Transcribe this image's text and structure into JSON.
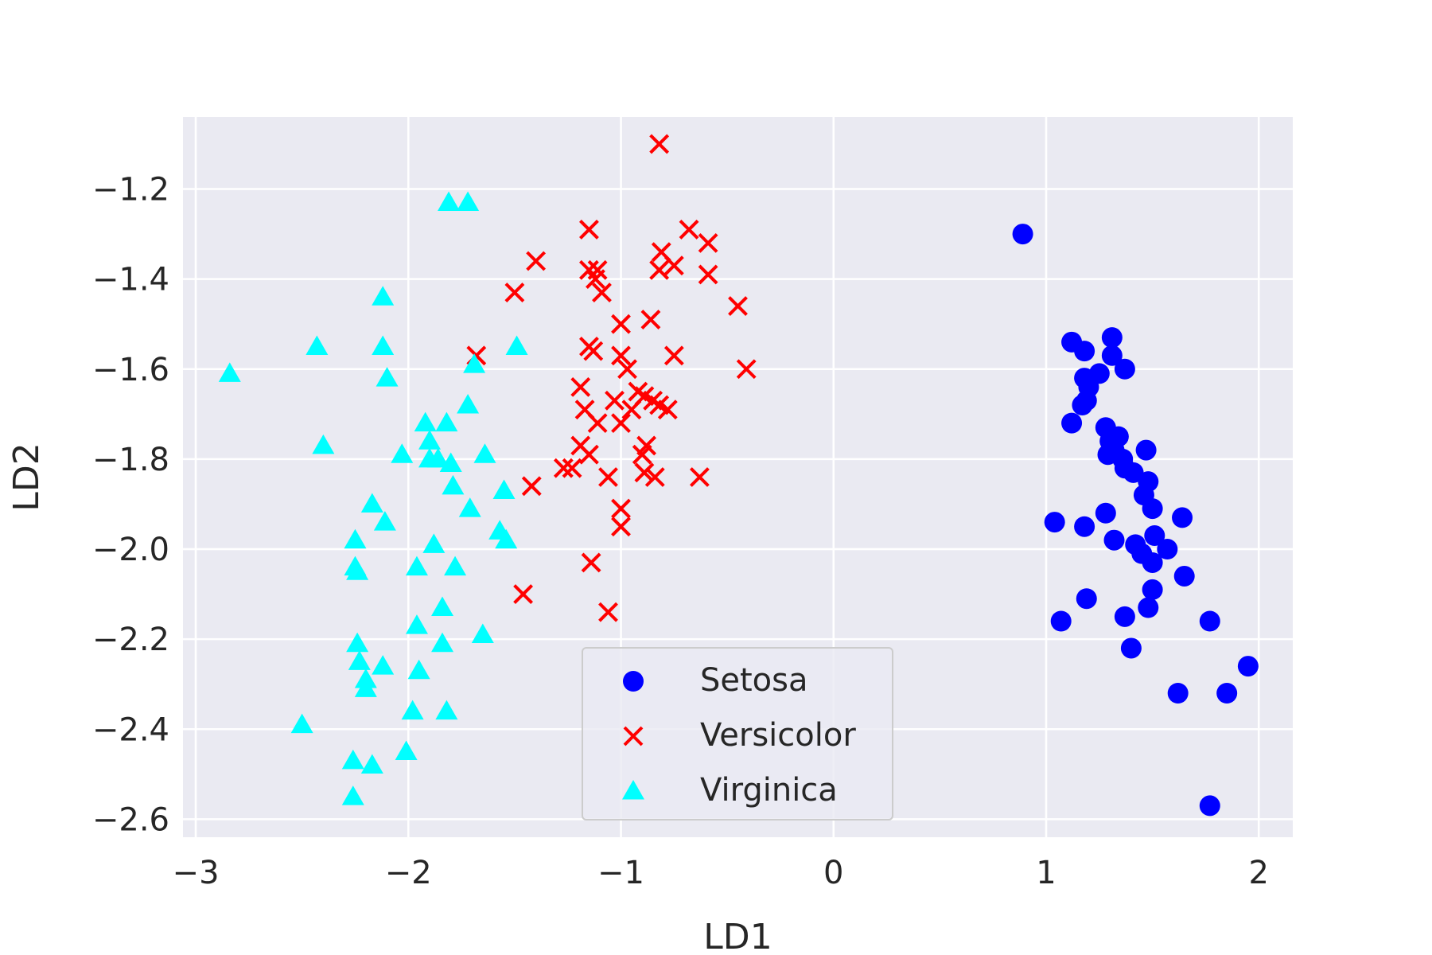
{
  "chart_data": {
    "type": "scatter",
    "title": "",
    "xlabel": "LD1",
    "ylabel": "LD2",
    "xlim": [
      -3.06,
      2.16
    ],
    "ylim": [
      -2.64,
      -1.04
    ],
    "xticks": [
      -3,
      -2,
      -1,
      0,
      1,
      2
    ],
    "yticks": [
      -2.6,
      -2.4,
      -2.2,
      -2.0,
      -1.8,
      -1.6,
      -1.4,
      -1.2
    ],
    "xtick_labels": [
      "−3",
      "−2",
      "−1",
      "0",
      "1",
      "2"
    ],
    "ytick_labels": [
      "−2.6",
      "−2.4",
      "−2.2",
      "−2.0",
      "−1.8",
      "−1.6",
      "−1.4",
      "−1.2"
    ],
    "grid": true,
    "legend_position": "lower-center",
    "series": [
      {
        "name": "Setosa",
        "marker": "circle",
        "color": "#0000ff",
        "points": [
          [
            0.89,
            -1.3
          ],
          [
            1.12,
            -1.54
          ],
          [
            1.18,
            -1.56
          ],
          [
            1.31,
            -1.53
          ],
          [
            1.31,
            -1.57
          ],
          [
            1.37,
            -1.6
          ],
          [
            1.18,
            -1.62
          ],
          [
            1.2,
            -1.64
          ],
          [
            1.25,
            -1.61
          ],
          [
            1.17,
            -1.68
          ],
          [
            1.19,
            -1.67
          ],
          [
            1.12,
            -1.72
          ],
          [
            1.28,
            -1.73
          ],
          [
            1.3,
            -1.76
          ],
          [
            1.34,
            -1.75
          ],
          [
            1.32,
            -1.78
          ],
          [
            1.29,
            -1.79
          ],
          [
            1.36,
            -1.8
          ],
          [
            1.37,
            -1.82
          ],
          [
            1.47,
            -1.78
          ],
          [
            1.41,
            -1.83
          ],
          [
            1.48,
            -1.85
          ],
          [
            1.46,
            -1.88
          ],
          [
            1.5,
            -1.91
          ],
          [
            1.04,
            -1.94
          ],
          [
            1.18,
            -1.95
          ],
          [
            1.28,
            -1.92
          ],
          [
            1.32,
            -1.98
          ],
          [
            1.42,
            -1.99
          ],
          [
            1.45,
            -2.01
          ],
          [
            1.51,
            -1.97
          ],
          [
            1.5,
            -2.03
          ],
          [
            1.57,
            -2.0
          ],
          [
            1.64,
            -1.93
          ],
          [
            1.65,
            -2.06
          ],
          [
            1.5,
            -2.09
          ],
          [
            1.19,
            -2.11
          ],
          [
            1.07,
            -2.16
          ],
          [
            1.37,
            -2.15
          ],
          [
            1.48,
            -2.13
          ],
          [
            1.4,
            -2.22
          ],
          [
            1.77,
            -2.16
          ],
          [
            1.62,
            -2.32
          ],
          [
            1.85,
            -2.32
          ],
          [
            1.95,
            -2.26
          ],
          [
            1.77,
            -2.57
          ]
        ]
      },
      {
        "name": "Versicolor",
        "marker": "x",
        "color": "#ff0000",
        "points": [
          [
            -0.82,
            -1.1
          ],
          [
            -0.68,
            -1.29
          ],
          [
            -1.15,
            -1.29
          ],
          [
            -0.59,
            -1.32
          ],
          [
            -0.81,
            -1.34
          ],
          [
            -0.75,
            -1.37
          ],
          [
            -0.82,
            -1.38
          ],
          [
            -1.4,
            -1.36
          ],
          [
            -1.15,
            -1.38
          ],
          [
            -1.11,
            -1.38
          ],
          [
            -1.12,
            -1.4
          ],
          [
            -0.59,
            -1.39
          ],
          [
            -1.5,
            -1.43
          ],
          [
            -1.09,
            -1.43
          ],
          [
            -0.45,
            -1.46
          ],
          [
            -0.86,
            -1.49
          ],
          [
            -1.0,
            -1.5
          ],
          [
            -1.15,
            -1.55
          ],
          [
            -1.13,
            -1.56
          ],
          [
            -1.68,
            -1.57
          ],
          [
            -1.0,
            -1.57
          ],
          [
            -0.75,
            -1.57
          ],
          [
            -0.97,
            -1.6
          ],
          [
            -0.41,
            -1.6
          ],
          [
            -1.19,
            -1.64
          ],
          [
            -0.92,
            -1.65
          ],
          [
            -0.89,
            -1.66
          ],
          [
            -0.85,
            -1.67
          ],
          [
            -1.03,
            -1.67
          ],
          [
            -0.95,
            -1.69
          ],
          [
            -0.82,
            -1.68
          ],
          [
            -0.78,
            -1.69
          ],
          [
            -1.17,
            -1.69
          ],
          [
            -1.11,
            -1.72
          ],
          [
            -1.0,
            -1.72
          ],
          [
            -1.19,
            -1.77
          ],
          [
            -0.88,
            -1.77
          ],
          [
            -0.9,
            -1.79
          ],
          [
            -1.15,
            -1.79
          ],
          [
            -1.27,
            -1.82
          ],
          [
            -1.23,
            -1.82
          ],
          [
            -0.89,
            -1.83
          ],
          [
            -1.06,
            -1.84
          ],
          [
            -0.84,
            -1.84
          ],
          [
            -0.63,
            -1.84
          ],
          [
            -1.42,
            -1.86
          ],
          [
            -1.0,
            -1.91
          ],
          [
            -1.0,
            -1.95
          ],
          [
            -1.14,
            -2.03
          ],
          [
            -1.46,
            -2.1
          ],
          [
            -1.06,
            -2.14
          ]
        ]
      },
      {
        "name": "Virginica",
        "marker": "triangle",
        "color": "#00ffff",
        "points": [
          [
            -1.81,
            -1.23
          ],
          [
            -1.72,
            -1.23
          ],
          [
            -2.12,
            -1.44
          ],
          [
            -2.43,
            -1.55
          ],
          [
            -2.12,
            -1.55
          ],
          [
            -1.49,
            -1.55
          ],
          [
            -1.69,
            -1.59
          ],
          [
            -2.84,
            -1.61
          ],
          [
            -2.1,
            -1.62
          ],
          [
            -1.72,
            -1.68
          ],
          [
            -1.92,
            -1.72
          ],
          [
            -1.82,
            -1.72
          ],
          [
            -1.9,
            -1.76
          ],
          [
            -2.4,
            -1.77
          ],
          [
            -2.03,
            -1.79
          ],
          [
            -1.64,
            -1.79
          ],
          [
            -1.9,
            -1.8
          ],
          [
            -1.86,
            -1.8
          ],
          [
            -1.8,
            -1.81
          ],
          [
            -1.79,
            -1.86
          ],
          [
            -1.55,
            -1.87
          ],
          [
            -2.17,
            -1.9
          ],
          [
            -1.71,
            -1.91
          ],
          [
            -2.11,
            -1.94
          ],
          [
            -1.57,
            -1.96
          ],
          [
            -2.25,
            -1.98
          ],
          [
            -1.54,
            -1.98
          ],
          [
            -1.88,
            -1.99
          ],
          [
            -2.25,
            -2.04
          ],
          [
            -2.24,
            -2.05
          ],
          [
            -1.96,
            -2.04
          ],
          [
            -1.78,
            -2.04
          ],
          [
            -1.84,
            -2.13
          ],
          [
            -1.96,
            -2.17
          ],
          [
            -1.65,
            -2.19
          ],
          [
            -2.24,
            -2.21
          ],
          [
            -1.84,
            -2.21
          ],
          [
            -2.23,
            -2.25
          ],
          [
            -2.12,
            -2.26
          ],
          [
            -1.95,
            -2.27
          ],
          [
            -2.2,
            -2.29
          ],
          [
            -2.2,
            -2.31
          ],
          [
            -1.98,
            -2.36
          ],
          [
            -1.82,
            -2.36
          ],
          [
            -2.5,
            -2.39
          ],
          [
            -2.01,
            -2.45
          ],
          [
            -2.26,
            -2.47
          ],
          [
            -2.17,
            -2.48
          ],
          [
            -2.26,
            -2.55
          ]
        ]
      }
    ]
  }
}
